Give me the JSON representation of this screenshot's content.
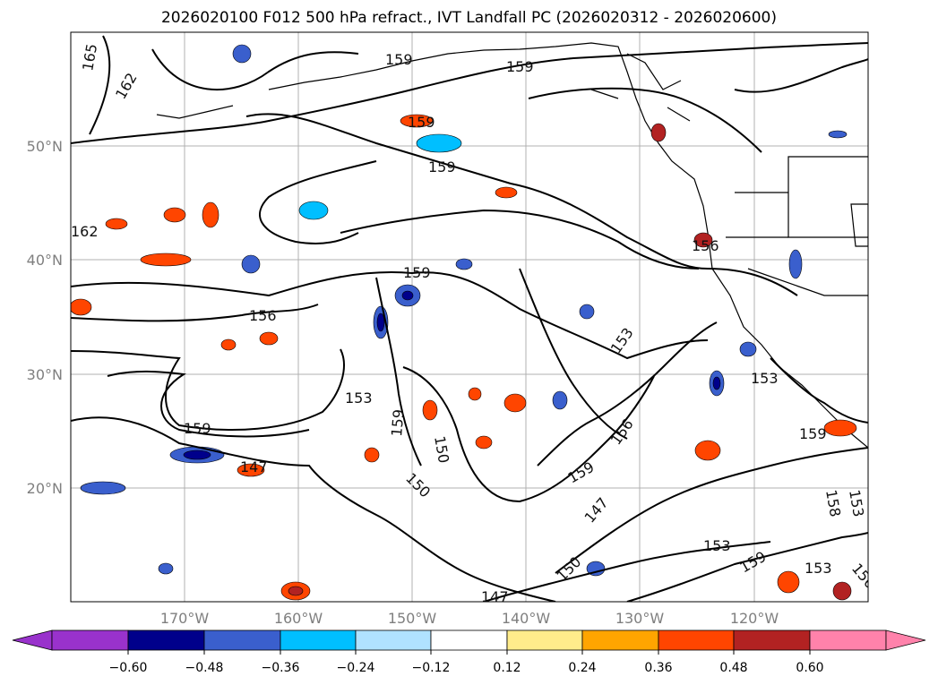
{
  "title": "2026020100 F012 500 hPa refract., IVT Landfall PC (2026020312 - 2026020600)",
  "lon_ticks": [
    "170°W",
    "160°W",
    "150°W",
    "140°W",
    "130°W",
    "120°W"
  ],
  "lat_ticks": [
    "50°N",
    "40°N",
    "30°N",
    "20°N"
  ],
  "contour_labels": [
    "165",
    "162",
    "162",
    "159",
    "159",
    "159",
    "159",
    "159",
    "156",
    "156",
    "153",
    "153",
    "153",
    "150",
    "150",
    "150",
    "147",
    "147",
    "147",
    "159",
    "159",
    "159",
    "156",
    "153",
    "153",
    "159",
    "158",
    "153",
    "156",
    "159"
  ],
  "colorbar": {
    "ticks": [
      "−0.60",
      "−0.48",
      "−0.36",
      "−0.24",
      "−0.12",
      "0.12",
      "0.24",
      "0.36",
      "0.48",
      "0.60"
    ],
    "colors": [
      "#9932cc",
      "#00008b",
      "#3a5fcd",
      "#00bfff",
      "#b0e2ff",
      "#ffffff",
      "#ffec8b",
      "#ffa500",
      "#ff4500",
      "#b22222",
      "#ff82ab"
    ]
  }
}
